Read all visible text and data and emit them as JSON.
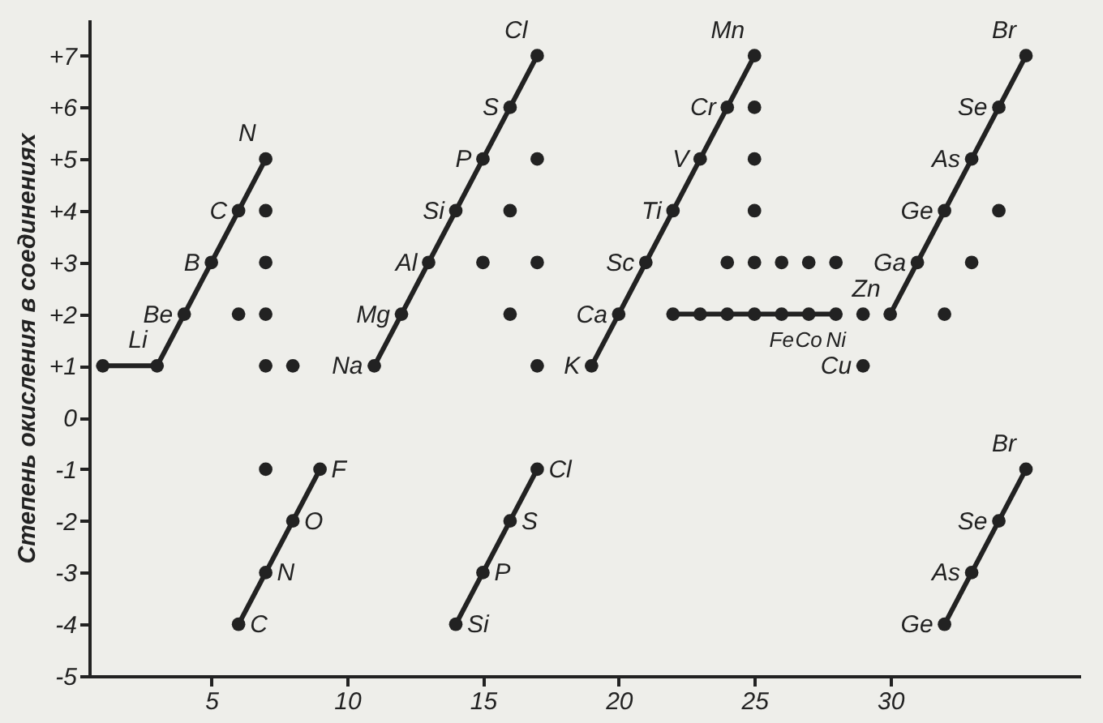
{
  "chart_data": {
    "type": "line",
    "ylabel": "Степень окисления в соединениях",
    "xlim": [
      0.5,
      37
    ],
    "xticks": [
      5,
      10,
      15,
      20,
      25,
      30
    ],
    "ylim": [
      -5,
      7.7
    ],
    "yticks": [
      {
        "value": 7,
        "label": "+7"
      },
      {
        "value": 6,
        "label": "+6"
      },
      {
        "value": 5,
        "label": "+5"
      },
      {
        "value": 4,
        "label": "+4"
      },
      {
        "value": 3,
        "label": "+3"
      },
      {
        "value": 2,
        "label": "+2"
      },
      {
        "value": 1,
        "label": "+1"
      },
      0,
      -1,
      -2,
      -3,
      -4,
      -5
    ],
    "grid": false,
    "marker": "circle",
    "line_style": "solid",
    "series": [
      {
        "color": "#222222",
        "x": [
          1,
          3,
          4,
          5,
          6,
          7
        ],
        "values": [
          1,
          1,
          2,
          3,
          4,
          5
        ]
      },
      {
        "type": "scatter",
        "color": "#222222",
        "x": [
          7,
          7,
          6,
          7,
          7,
          8,
          7
        ],
        "values": [
          4,
          3,
          2,
          2,
          1,
          1,
          -1
        ]
      },
      {
        "color": "#222222",
        "x": [
          6,
          7,
          8,
          9
        ],
        "values": [
          -4,
          -3,
          -2,
          -1
        ]
      },
      {
        "color": "#222222",
        "x": [
          11,
          12,
          13,
          14,
          15,
          16,
          17
        ],
        "values": [
          1,
          2,
          3,
          4,
          5,
          6,
          7
        ]
      },
      {
        "type": "scatter",
        "color": "#222222",
        "x": [
          17,
          16,
          15,
          17,
          16,
          17
        ],
        "values": [
          5,
          4,
          3,
          3,
          2,
          1
        ]
      },
      {
        "color": "#222222",
        "x": [
          14,
          15,
          16,
          17
        ],
        "values": [
          -4,
          -3,
          -2,
          -1
        ]
      },
      {
        "color": "#222222",
        "x": [
          19,
          20,
          21,
          22,
          23,
          24,
          25
        ],
        "values": [
          1,
          2,
          3,
          4,
          5,
          6,
          7
        ]
      },
      {
        "type": "scatter",
        "color": "#222222",
        "x": [
          25,
          25,
          25,
          24,
          25,
          26,
          27,
          28,
          29,
          29
        ],
        "values": [
          6,
          5,
          4,
          3,
          3,
          3,
          3,
          3,
          2,
          1
        ]
      },
      {
        "color": "#222222",
        "x": [
          22,
          23,
          24,
          25,
          26,
          27,
          28
        ],
        "values": [
          2,
          2,
          2,
          2,
          2,
          2,
          2
        ]
      },
      {
        "color": "#222222",
        "x": [
          30,
          31,
          32,
          33,
          34,
          35
        ],
        "values": [
          2,
          3,
          4,
          5,
          6,
          7
        ]
      },
      {
        "type": "scatter",
        "color": "#222222",
        "x": [
          34,
          33,
          32
        ],
        "values": [
          4,
          3,
          2
        ]
      },
      {
        "color": "#222222",
        "x": [
          32,
          33,
          34,
          35
        ],
        "values": [
          -4,
          -3,
          -2,
          -1
        ]
      }
    ],
    "annotations": [
      {
        "text": "Li",
        "x": 3,
        "y": 1
      },
      {
        "text": "Be",
        "x": 4,
        "y": 2
      },
      {
        "text": "B",
        "x": 5,
        "y": 3
      },
      {
        "text": "C",
        "x": 6,
        "y": 4
      },
      {
        "text": "N",
        "x": 7,
        "y": 5
      },
      {
        "text": "F",
        "x": 9,
        "y": -1
      },
      {
        "text": "O",
        "x": 8,
        "y": -2
      },
      {
        "text": "N",
        "x": 7,
        "y": -3
      },
      {
        "text": "C",
        "x": 6,
        "y": -4
      },
      {
        "text": "Na",
        "x": 11,
        "y": 1
      },
      {
        "text": "Mg",
        "x": 12,
        "y": 2
      },
      {
        "text": "Al",
        "x": 13,
        "y": 3
      },
      {
        "text": "Si",
        "x": 14,
        "y": 4
      },
      {
        "text": "P",
        "x": 15,
        "y": 5
      },
      {
        "text": "S",
        "x": 16,
        "y": 6
      },
      {
        "text": "Cl",
        "x": 17,
        "y": 7
      },
      {
        "text": "Cl",
        "x": 17,
        "y": -1
      },
      {
        "text": "S",
        "x": 16,
        "y": -2
      },
      {
        "text": "P",
        "x": 15,
        "y": -3
      },
      {
        "text": "Si",
        "x": 14,
        "y": -4
      },
      {
        "text": "K",
        "x": 19,
        "y": 1
      },
      {
        "text": "Ca",
        "x": 20,
        "y": 2
      },
      {
        "text": "Sc",
        "x": 21,
        "y": 3
      },
      {
        "text": "Ti",
        "x": 22,
        "y": 4
      },
      {
        "text": "V",
        "x": 23,
        "y": 5
      },
      {
        "text": "Cr",
        "x": 24,
        "y": 6
      },
      {
        "text": "Mn",
        "x": 25,
        "y": 7
      },
      {
        "text": "Fe",
        "x": 26,
        "y": 2
      },
      {
        "text": "Co",
        "x": 27,
        "y": 2
      },
      {
        "text": "Ni",
        "x": 28,
        "y": 2
      },
      {
        "text": "Cu",
        "x": 29,
        "y": 1
      },
      {
        "text": "Zn",
        "x": 30,
        "y": 2
      },
      {
        "text": "Ga",
        "x": 31,
        "y": 3
      },
      {
        "text": "Ge",
        "x": 32,
        "y": 4
      },
      {
        "text": "As",
        "x": 33,
        "y": 5
      },
      {
        "text": "Se",
        "x": 34,
        "y": 6
      },
      {
        "text": "Br",
        "x": 35,
        "y": 7
      },
      {
        "text": "Br",
        "x": 35,
        "y": -1
      },
      {
        "text": "Se",
        "x": 34,
        "y": -2
      },
      {
        "text": "As",
        "x": 33,
        "y": -3
      },
      {
        "text": "Ge",
        "x": 32,
        "y": -4
      }
    ]
  }
}
